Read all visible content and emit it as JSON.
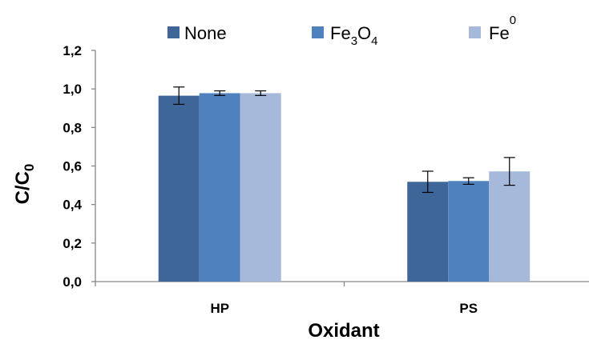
{
  "chart_data": {
    "type": "bar",
    "categories": [
      "HP",
      "PS"
    ],
    "series": [
      {
        "name": "None",
        "values": [
          0.965,
          0.518
        ],
        "errors": [
          0.045,
          0.055
        ],
        "color": "#3E6699"
      },
      {
        "name": "Fe3O4",
        "name_base": "Fe",
        "name_sub1": "3",
        "name_mid": "O",
        "name_sub2": "4",
        "values": [
          0.978,
          0.522
        ],
        "errors": [
          0.012,
          0.017
        ],
        "color": "#4E81BD"
      },
      {
        "name": "Fe0",
        "name_base": "Fe",
        "name_sup": "0",
        "values": [
          0.978,
          0.572
        ],
        "errors": [
          0.012,
          0.072
        ],
        "color": "#A6B9DB"
      }
    ],
    "ylim": [
      0,
      1.2
    ],
    "yticks": [
      "0,0",
      "0,2",
      "0,4",
      "0,6",
      "0,8",
      "1,0",
      "1,2"
    ],
    "ylabel": "C/C",
    "ylabel_sub": "0",
    "xlabel": "Oxidant",
    "legend_position": "top",
    "grid": false
  }
}
